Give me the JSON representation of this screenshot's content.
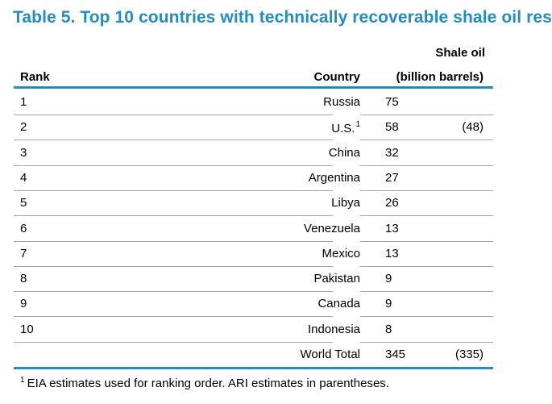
{
  "title": "Table 5. Top 10 countries with technically recoverable shale oil res",
  "headers": {
    "shale_oil": "Shale oil",
    "rank": "Rank",
    "country": "Country",
    "units": "(billion barrels)"
  },
  "rows": [
    {
      "rank": "1",
      "country": "Russia",
      "sup": "",
      "value": "75",
      "ari": ""
    },
    {
      "rank": "2",
      "country": "U.S.",
      "sup": "1",
      "value": "58",
      "ari": "(48)"
    },
    {
      "rank": "3",
      "country": "China",
      "sup": "",
      "value": "32",
      "ari": ""
    },
    {
      "rank": "4",
      "country": "Argentina",
      "sup": "",
      "value": "27",
      "ari": ""
    },
    {
      "rank": "5",
      "country": "Libya",
      "sup": "",
      "value": "26",
      "ari": ""
    },
    {
      "rank": "6",
      "country": "Venezuela",
      "sup": "",
      "value": "13",
      "ari": ""
    },
    {
      "rank": "7",
      "country": "Mexico",
      "sup": "",
      "value": "13",
      "ari": ""
    },
    {
      "rank": "8",
      "country": "Pakistan",
      "sup": "",
      "value": "9",
      "ari": ""
    },
    {
      "rank": "9",
      "country": "Canada",
      "sup": "",
      "value": "9",
      "ari": ""
    },
    {
      "rank": "10",
      "country": "Indonesia",
      "sup": "",
      "value": "8",
      "ari": ""
    }
  ],
  "total": {
    "label": "World Total",
    "value": "345",
    "ari": "(335)"
  },
  "footnote": {
    "marker": "1",
    "text": "EIA estimates used for ranking order. ARI estimates in parentheses."
  },
  "colors": {
    "accent": "#1f8dc8",
    "rule": "#a6a6a6"
  }
}
